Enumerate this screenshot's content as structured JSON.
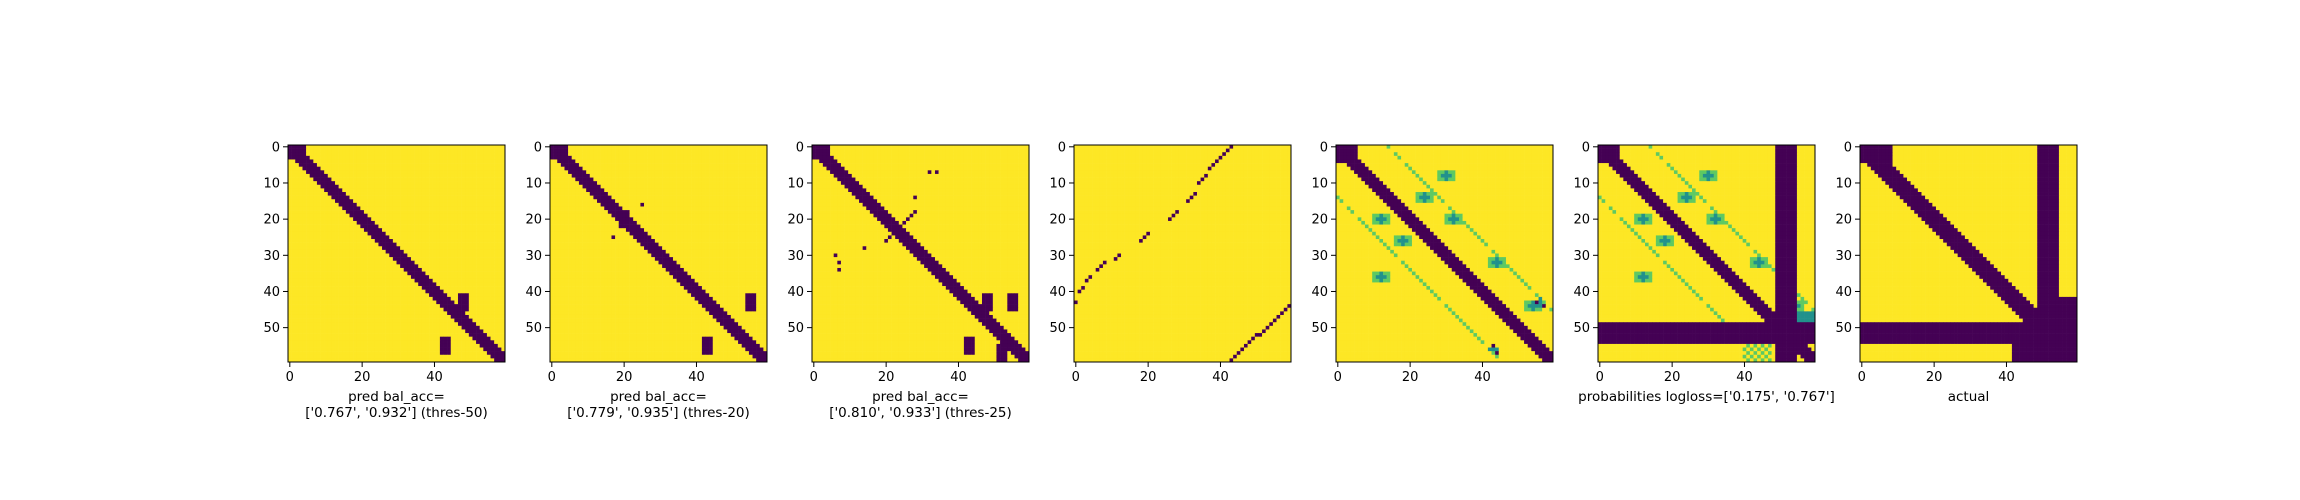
{
  "colors": {
    "dark": "#440154",
    "teal": "#21918c",
    "green": "#5ec962",
    "light": "#fde725"
  },
  "chart_data": [
    {
      "type": "heatmap",
      "kind": "pred",
      "matrix_size": [
        60,
        60
      ],
      "xlabel": [
        "pred bal_acc=",
        "['0.767', '0.932'] (thres-50)"
      ],
      "xticks": [
        0,
        20,
        40
      ],
      "yticks": [
        0,
        10,
        20,
        30,
        40,
        50
      ],
      "features": {
        "diag": [
          0,
          60,
          2
        ],
        "blobs": [
          [
            43,
            48,
            2
          ],
          [
            55,
            43,
            2
          ]
        ],
        "dots": []
      }
    },
    {
      "type": "heatmap",
      "kind": "pred",
      "matrix_size": [
        60,
        60
      ],
      "xlabel": [
        "pred bal_acc=",
        "['0.779', '0.935'] (thres-20)"
      ],
      "xticks": [
        0,
        20,
        40
      ],
      "yticks": [
        0,
        10,
        20,
        30,
        40,
        50
      ],
      "features": {
        "diag": [
          0,
          60,
          2
        ],
        "blobs": [
          [
            43,
            55,
            2
          ],
          [
            55,
            43,
            2
          ],
          [
            20,
            20,
            2
          ]
        ],
        "dots": [
          [
            16,
            25
          ],
          [
            25,
            17
          ]
        ]
      }
    },
    {
      "type": "heatmap",
      "kind": "pred",
      "matrix_size": [
        60,
        60
      ],
      "xlabel": [
        "pred bal_acc=",
        "['0.810', '0.933'] (thres-25)"
      ],
      "xticks": [
        0,
        20,
        40
      ],
      "yticks": [
        0,
        10,
        20,
        30,
        40,
        50
      ],
      "features": {
        "diag": [
          0,
          60,
          2
        ],
        "blobs": [
          [
            43,
            55,
            2
          ],
          [
            55,
            43,
            2
          ],
          [
            43,
            48,
            2
          ],
          [
            57,
            52,
            2
          ]
        ],
        "dots": [
          [
            7,
            32
          ],
          [
            34,
            7
          ],
          [
            14,
            28
          ],
          [
            28,
            14
          ],
          [
            32,
            7
          ],
          [
            7,
            34
          ],
          [
            30,
            6
          ]
        ]
      }
    },
    {
      "type": "heatmap",
      "kind": "offdiag",
      "matrix_size": [
        60,
        60
      ],
      "xlabel": [],
      "xticks": [
        0,
        20,
        40
      ],
      "yticks": [
        0,
        10,
        20,
        30,
        40,
        50
      ]
    },
    {
      "type": "heatmap",
      "kind": "prob",
      "matrix_size": [
        60,
        60
      ],
      "xlabel": [],
      "xticks": [
        0,
        20,
        40
      ],
      "yticks": [
        0,
        10,
        20,
        30,
        40,
        50
      ]
    },
    {
      "type": "heatmap",
      "kind": "prob_bands",
      "matrix_size": [
        60,
        60
      ],
      "xlabel": [
        "probabilities logloss=['0.175', '0.767']"
      ],
      "xticks": [
        0,
        20,
        40
      ],
      "yticks": [
        0,
        10,
        20,
        30,
        40,
        50
      ],
      "bands": {
        "cols": [
          49,
          54
        ],
        "rows": [
          49,
          54
        ]
      }
    },
    {
      "type": "heatmap",
      "kind": "actual",
      "matrix_size": [
        60,
        60
      ],
      "xlabel": [
        "actual"
      ],
      "xticks": [
        0,
        20,
        40
      ],
      "yticks": [
        0,
        10,
        20,
        30,
        40,
        50
      ],
      "bands": {
        "cols": [
          49,
          54
        ],
        "rows": [
          49,
          54
        ]
      }
    }
  ]
}
